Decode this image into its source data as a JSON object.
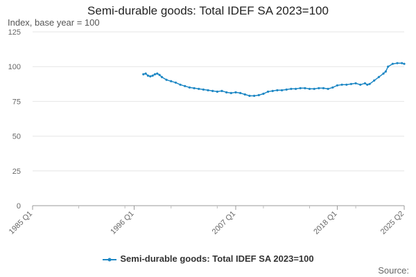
{
  "chart_data": {
    "type": "line",
    "title": "Semi-durable goods: Total IDEF SA 2023=100",
    "ylabel": "Index, base year = 100",
    "xlabel": "",
    "ylim": [
      0,
      125
    ],
    "yticks": [
      0,
      25,
      50,
      75,
      100,
      125
    ],
    "xlim": [
      1985.0,
      2025.25
    ],
    "xticks": [
      {
        "label": "1985 Q1",
        "value": 1985.0
      },
      {
        "label": "1996 Q1",
        "value": 1996.0
      },
      {
        "label": "2007 Q1",
        "value": 2007.0
      },
      {
        "label": "2018 Q1",
        "value": 2018.0
      },
      {
        "label": "2025 Q2",
        "value": 2025.25
      }
    ],
    "series": [
      {
        "name": "Semi-durable goods: Total IDEF SA 2023=100",
        "color": "#1d87c4",
        "x": [
          1997.0,
          1997.25,
          1997.5,
          1997.75,
          1998.0,
          1998.25,
          1998.5,
          1998.75,
          1999.0,
          1999.5,
          2000.0,
          2000.5,
          2001.0,
          2001.5,
          2002.0,
          2002.5,
          2003.0,
          2003.5,
          2004.0,
          2004.5,
          2005.0,
          2005.5,
          2006.0,
          2006.5,
          2007.0,
          2007.5,
          2008.0,
          2008.5,
          2009.0,
          2009.5,
          2010.0,
          2010.5,
          2011.0,
          2011.5,
          2012.0,
          2012.5,
          2013.0,
          2013.5,
          2014.0,
          2014.5,
          2015.0,
          2015.5,
          2016.0,
          2016.5,
          2017.0,
          2017.5,
          2018.0,
          2018.5,
          2019.0,
          2019.5,
          2020.0,
          2020.5,
          2021.0,
          2021.25,
          2021.5,
          2022.0,
          2022.5,
          2023.0,
          2023.25,
          2023.5,
          2024.0,
          2024.5,
          2025.0,
          2025.25
        ],
        "y": [
          94.5,
          95.0,
          93.5,
          93.0,
          93.5,
          94.5,
          95.0,
          94.0,
          92.5,
          90.5,
          89.5,
          88.5,
          87.0,
          86.0,
          85.0,
          84.5,
          84.0,
          83.5,
          83.0,
          82.5,
          82.0,
          82.5,
          81.5,
          81.0,
          81.5,
          81.0,
          80.0,
          79.0,
          79.0,
          79.5,
          80.5,
          82.0,
          82.5,
          83.0,
          83.0,
          83.5,
          84.0,
          84.0,
          84.5,
          84.5,
          84.0,
          84.0,
          84.5,
          84.5,
          84.0,
          85.0,
          86.5,
          87.0,
          87.0,
          87.5,
          88.0,
          87.0,
          88.0,
          87.0,
          87.5,
          90.0,
          92.5,
          95.0,
          96.5,
          100.0,
          102.0,
          102.5,
          102.5,
          102.0
        ]
      }
    ],
    "legend": "bottom-center",
    "source_label": "Source:"
  }
}
